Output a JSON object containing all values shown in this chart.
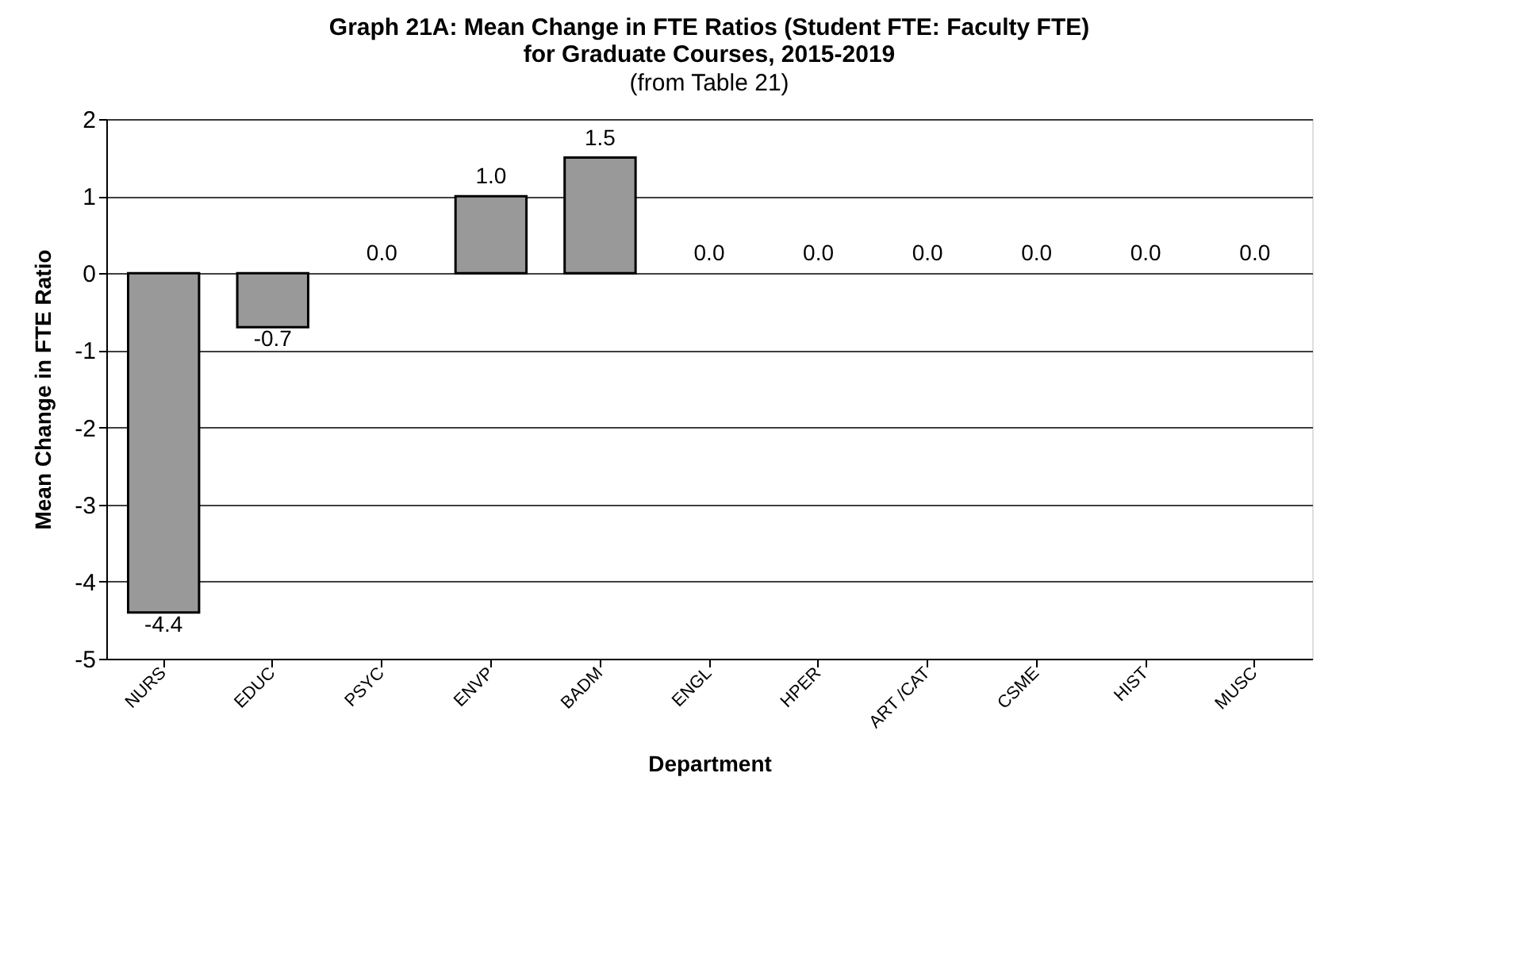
{
  "chart_data": {
    "type": "bar",
    "title": "Graph 21A: Mean Change in FTE Ratios (Student FTE: Faculty FTE)\nfor Graduate Courses, 2015-2019",
    "subtitle": "(from Table 21)",
    "xlabel": "Department",
    "ylabel": "Mean Change in FTE Ratio",
    "categories": [
      "NURS",
      "EDUC",
      "PSYC",
      "ENVP",
      "BADM",
      "ENGL",
      "HPER",
      "ART /CAT",
      "CSME",
      "HIST",
      "MUSC"
    ],
    "values": [
      -4.4,
      -0.7,
      0.0,
      1.0,
      1.5,
      0.0,
      0.0,
      0.0,
      0.0,
      0.0,
      0.0
    ],
    "value_labels": [
      "-4.4",
      "-0.7",
      "0.0",
      "1.0",
      "1.5",
      "0.0",
      "0.0",
      "0.0",
      "0.0",
      "0.0",
      "0.0"
    ],
    "color": "#999999",
    "ylim": [
      -5,
      2
    ],
    "yticks": [
      {
        "value": -5,
        "label": "-5"
      },
      {
        "value": -4,
        "label": "-4"
      },
      {
        "value": -3,
        "label": "-3"
      },
      {
        "value": -2,
        "label": "-2"
      },
      {
        "value": -1,
        "label": "-1"
      },
      {
        "value": 0,
        "label": "0"
      },
      {
        "value": 1,
        "label": "1"
      },
      {
        "value": 2,
        "label": "2"
      }
    ],
    "grid": "y"
  }
}
